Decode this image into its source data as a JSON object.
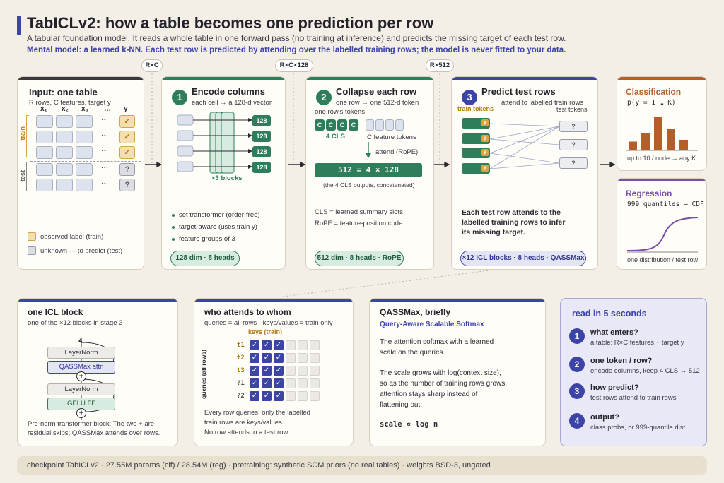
{
  "header": {
    "title": "TabICLv2: how a table becomes one prediction per row",
    "subtitle": "A tabular foundation model. It reads a whole table in one forward pass (no training at inference) and predicts the missing target of each test row.",
    "mental_model": "Mental model: a learned k-NN. Each test row is predicted by attending over the labelled training rows; the model is never fitted to your data."
  },
  "shape_tags": {
    "rc": "R×C",
    "rc128": "R×C×128",
    "r512": "R×512"
  },
  "input_card": {
    "title": "Input: one table",
    "desc": "R rows, C features, target y",
    "cols": [
      "x₁",
      "x₂",
      "x₃",
      "…",
      "y"
    ],
    "train_label": "train",
    "test_label": "test",
    "check": "✓",
    "question": "?",
    "ellipsis": "···",
    "legend_observed": "observed label (train)",
    "legend_unknown": "unknown — to predict (test)"
  },
  "encode_card": {
    "num": "1",
    "title": "Encode columns",
    "desc": "each cell → a 128-d vector",
    "out_token": "128",
    "blocks": "×3 blocks",
    "bullets": [
      "set transformer (order-free)",
      "target-aware (uses train y)",
      "feature groups of 3"
    ],
    "tag": "128 dim · 8 heads"
  },
  "collapse_card": {
    "num": "2",
    "title": "Collapse each row",
    "desc": "one row → one 512-d token",
    "tokens_label": "one row's tokens",
    "cls_token": "C",
    "cls_label": "4 CLS",
    "feat_label": "C feature tokens",
    "attend_label": "attend (RoPE)",
    "out": "512 = 4 × 128",
    "out_note": "(the 4 CLS outputs, concatenated)",
    "cls_def": "CLS = learned summary slots",
    "rope_def": "RoPE = feature-position code",
    "tag": "512 dim · 8 heads · RoPE"
  },
  "predict_card": {
    "num": "3",
    "title": "Predict test rows",
    "desc": "attend to labelled train rows",
    "train_tokens": "train tokens",
    "test_tokens": "test tokens",
    "y": "y",
    "q": "?",
    "body": [
      "Each test row attends to the",
      "labelled training rows to infer",
      "its missing target."
    ],
    "tag": "×12 ICL blocks · 8 heads · QASSMax"
  },
  "classification": {
    "title": "Classification",
    "formula": "p(y = 1 … K)",
    "note": "up to 10 / node → any K",
    "bars": [
      0.25,
      0.5,
      0.95,
      0.6,
      0.3
    ]
  },
  "regression": {
    "title": "Regression",
    "formula": "999 quantiles → CDF",
    "note": "one distribution / test row"
  },
  "icl_block": {
    "title": "one ICL block",
    "desc": "one of the ×12 blocks in stage 3",
    "z": "z",
    "layernorm": "LayerNorm",
    "attn": "QASSMax attn",
    "plus": "+",
    "ff": "GELU FF",
    "body": [
      "Pre-norm transformer block. The two + are",
      "residual skips; QASSMax attends over rows."
    ]
  },
  "attends": {
    "title": "who attends to whom",
    "desc": "queries = all rows · keys/values = train only",
    "keys_label": "keys (train)",
    "queries_label": "queries (all rows)",
    "rows": [
      "t1",
      "t2",
      "t3",
      "?1",
      "?2"
    ],
    "check": "✓",
    "body": [
      "Every row queries; only the labelled",
      "train rows are keys/values.",
      "No row attends to a test row."
    ]
  },
  "qassmax": {
    "title": "QASSMax, briefly",
    "subtitle": "Query-Aware Scalable Softmax",
    "p1": [
      "The attention softmax with a learned",
      "scale on the queries."
    ],
    "p2": [
      "The scale grows with log(context size),",
      "so as the number of training rows grows,",
      "attention stays sharp instead of",
      "flattening out."
    ],
    "formula": "scale ∝ log n"
  },
  "read5": {
    "title": "read in 5 seconds",
    "steps": [
      {
        "num": "1",
        "q": "what enters?",
        "a": "a table: R×C features + target y"
      },
      {
        "num": "2",
        "q": "one token / row?",
        "a": "encode columns, keep 4 CLS → 512"
      },
      {
        "num": "3",
        "q": "how predict?",
        "a": "test rows attend to train rows"
      },
      {
        "num": "4",
        "q": "output?",
        "a": "class probs, or 999-quantile dist"
      }
    ]
  },
  "footer": {
    "text": "checkpoint TabICLv2 · 27.55M params (clf) / 28.54M (reg) · pretraining: synthetic SCM priors (no real tables) · weights BSD-3, ungated"
  },
  "colors": {
    "indigo": "#3d44a8",
    "green": "#2e7d5b",
    "orange": "#b35f2a",
    "purple": "#7a4fa6",
    "gold": "#d6a546"
  }
}
